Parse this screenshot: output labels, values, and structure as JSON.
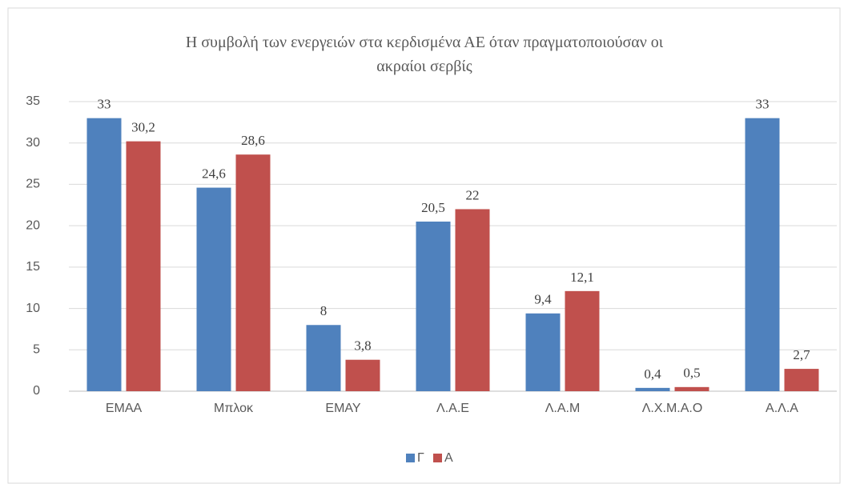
{
  "chart_data": {
    "type": "bar",
    "title": "Η συμβολή των ενεργειών στα κερδισμένα ΑΕ όταν πραγματοποιούσαν οι ακραίοι σερβίς",
    "categories": [
      "ΕΜΑΑ",
      "Μπλοκ",
      "ΕΜΑΥ",
      "Λ.Α.Ε",
      "Λ.Α.Μ",
      "Λ.Χ.Μ.Α.Ο",
      "Α.Λ.Α"
    ],
    "series": [
      {
        "name": "Γ",
        "color": "#4f81bd",
        "values": [
          33,
          24.6,
          8,
          20.5,
          9.4,
          0.4,
          33
        ],
        "value_labels": [
          "33",
          "24,6",
          "8",
          "20,5",
          "9,4",
          "0,4",
          "33"
        ]
      },
      {
        "name": "Α",
        "color": "#c0504d",
        "values": [
          30.2,
          28.6,
          3.8,
          22,
          12.1,
          0.5,
          2.7
        ],
        "value_labels": [
          "30,2",
          "28,6",
          "3,8",
          "22",
          "12,1",
          "0,5",
          "2,7"
        ]
      }
    ],
    "ylim": [
      0,
      35
    ],
    "yticks": [
      0,
      5,
      10,
      15,
      20,
      25,
      30,
      35
    ],
    "grid": true,
    "legend": "bottom"
  }
}
